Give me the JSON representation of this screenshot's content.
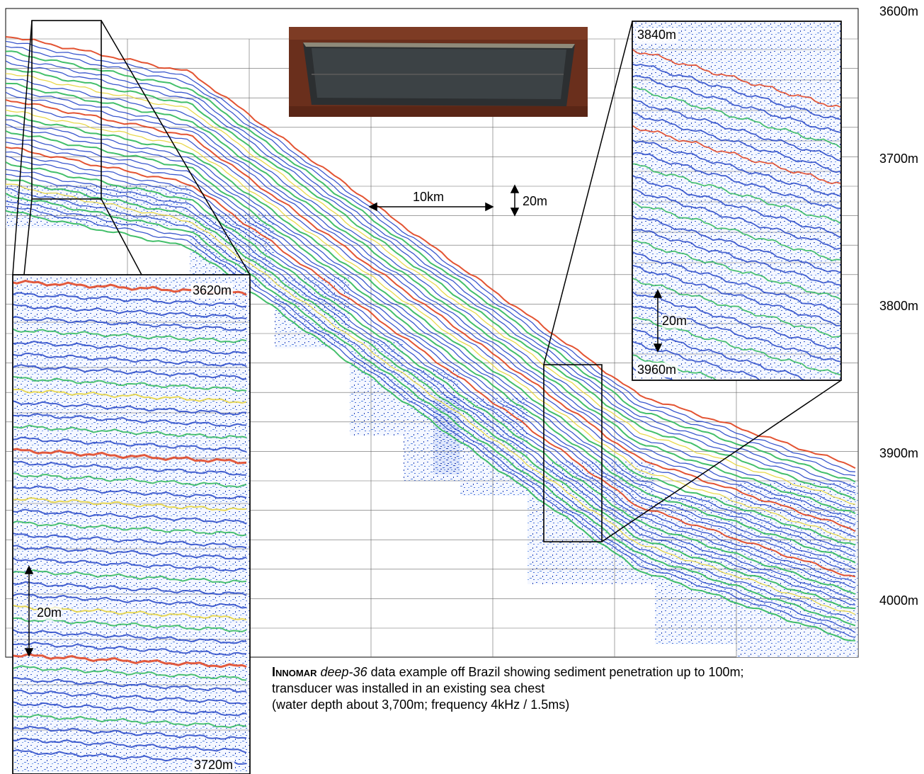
{
  "depth_axis": {
    "labels": [
      "3600m",
      "3700m",
      "3800m",
      "3900m",
      "4000m"
    ]
  },
  "inset_left": {
    "top_label": "3620m",
    "bottom_label": "3720m",
    "scale_label": "20m"
  },
  "inset_right": {
    "top_label": "3840m",
    "bottom_label": "3960m",
    "scale_label": "20m"
  },
  "scale_bar": {
    "horizontal_label": "10km",
    "vertical_label": "20m"
  },
  "photo": {
    "subject": "transducer in sea chest"
  },
  "caption": {
    "brand": "Innomar",
    "product": "deep-36",
    "line1_rest": " data example off Brazil showing sediment penetration up to 100m;",
    "line2": "transducer was installed in an existing sea chest",
    "line3": "(water depth about 3,700m; frequency 4kHz / 1.5ms)"
  },
  "colors": {
    "reflector_blue": "#2646c8",
    "reflector_green": "#2fb85a",
    "reflector_yellow": "#e6d43a",
    "reflector_red": "#e0401c",
    "grid": "#555555"
  }
}
